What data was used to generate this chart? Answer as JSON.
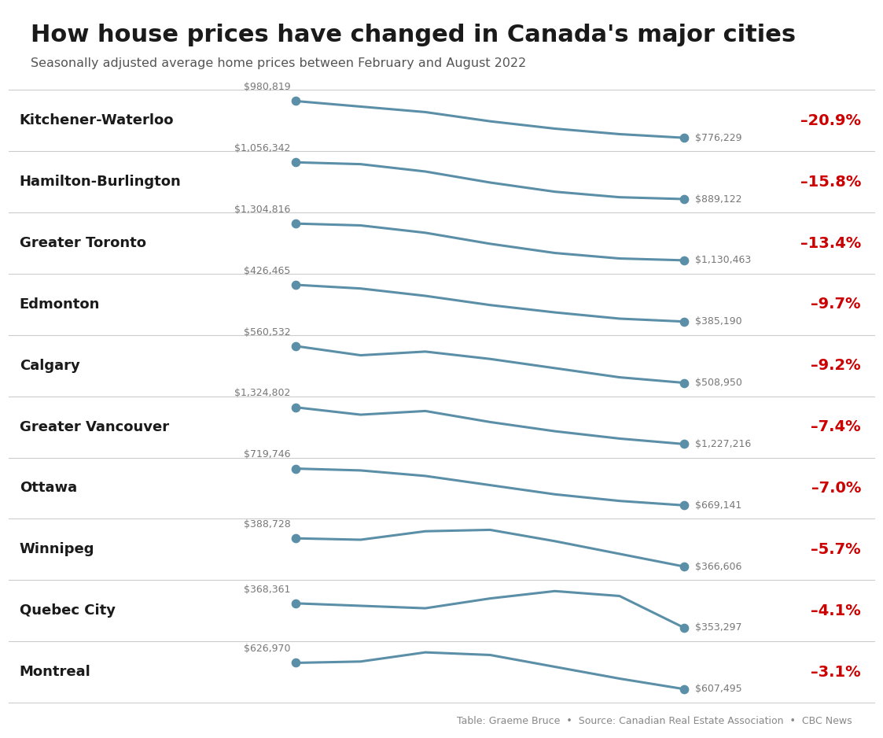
{
  "title": "How house prices have changed in Canada's major cities",
  "subtitle": "Seasonally adjusted average home prices between February and August 2022",
  "footer": "Table: Graeme Bruce  •  Source: Canadian Real Estate Association  •  CBC News",
  "cities": [
    "Kitchener-Waterloo",
    "Hamilton-Burlington",
    "Greater Toronto",
    "Edmonton",
    "Calgary",
    "Greater Vancouver",
    "Ottawa",
    "Winnipeg",
    "Quebec City",
    "Montreal"
  ],
  "changes": [
    "–20.9%",
    "–15.8%",
    "–13.4%",
    "–9.7%",
    "–9.2%",
    "–7.4%",
    "–7.0%",
    "–5.7%",
    "–4.1%",
    "–3.1%"
  ],
  "start_prices": [
    "$980,819",
    "$1,056,342",
    "$1,304,816",
    "$426,465",
    "$560,532",
    "$1,324,802",
    "$719,746",
    "$388,728",
    "$368,361",
    "$626,970"
  ],
  "end_prices": [
    "$776,229",
    "$889,122",
    "$1,130,463",
    "$385,190",
    "$508,950",
    "$1,227,216",
    "$669,141",
    "$366,606",
    "$353,297",
    "$607,495"
  ],
  "start_values": [
    980819,
    1056342,
    1304816,
    426465,
    560532,
    1324802,
    719746,
    388728,
    368361,
    626970
  ],
  "end_values": [
    776229,
    889122,
    1130463,
    385190,
    508950,
    1227216,
    669141,
    366606,
    353297,
    607495
  ],
  "line_shapes": [
    [
      0.0,
      -0.15,
      -0.3,
      -0.55,
      -0.75,
      -0.9,
      -1.0
    ],
    [
      0.0,
      -0.05,
      -0.25,
      -0.55,
      -0.8,
      -0.95,
      -1.0
    ],
    [
      0.0,
      -0.05,
      -0.25,
      -0.55,
      -0.8,
      -0.95,
      -1.0
    ],
    [
      0.0,
      -0.1,
      -0.3,
      -0.55,
      -0.75,
      -0.92,
      -1.0
    ],
    [
      0.0,
      -0.25,
      -0.15,
      -0.35,
      -0.6,
      -0.85,
      -1.0
    ],
    [
      0.0,
      -0.2,
      -0.1,
      -0.4,
      -0.65,
      -0.85,
      -1.0
    ],
    [
      0.0,
      -0.05,
      -0.2,
      -0.45,
      -0.7,
      -0.88,
      -1.0
    ],
    [
      0.0,
      -0.05,
      0.25,
      0.3,
      -0.1,
      -0.55,
      -1.0
    ],
    [
      0.0,
      -0.1,
      -0.2,
      0.2,
      0.5,
      0.3,
      -1.0
    ],
    [
      0.0,
      0.05,
      0.4,
      0.3,
      -0.15,
      -0.6,
      -1.0
    ]
  ],
  "line_color": "#5b8fa8",
  "dot_color": "#5b8fa8",
  "change_color": "#cc0000",
  "title_color": "#1a1a1a",
  "city_color": "#1a1a1a",
  "price_color": "#777777",
  "bg_color": "#ffffff",
  "separator_color": "#cccccc",
  "line_width": 2.2,
  "dot_size": 55
}
